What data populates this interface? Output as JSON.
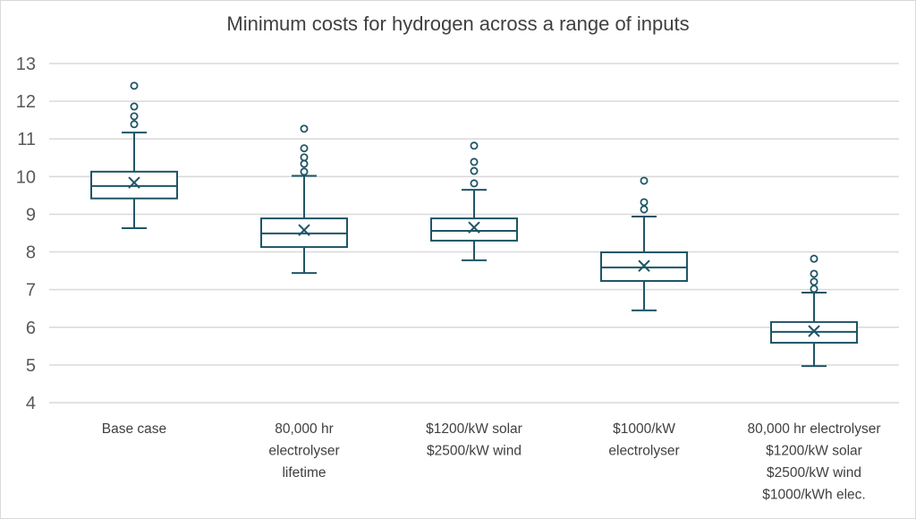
{
  "chart_data": {
    "type": "box",
    "title": "Minimum costs for hydrogen across a range of inputs",
    "xlabel": "",
    "ylabel": "",
    "ylim": [
      4,
      13
    ],
    "yticks": [
      4,
      5,
      6,
      7,
      8,
      9,
      10,
      11,
      12,
      13
    ],
    "grid": true,
    "legend": "none",
    "colors": {
      "box": "#1f5566",
      "grid": "#d9d9d9",
      "text": "#404040"
    },
    "categories": [
      [
        "Base case"
      ],
      [
        "80,000 hr",
        "electrolyser",
        "lifetime"
      ],
      [
        "$1200/kW solar",
        "$2500/kW wind"
      ],
      [
        "$1000/kW",
        "electrolyser"
      ],
      [
        "80,000 hr electrolyser",
        "$1200/kW solar",
        "$2500/kW wind",
        "$1000/kWh elec."
      ]
    ],
    "series": [
      {
        "name": "Base case",
        "min": 8.63,
        "q1": 9.42,
        "median": 9.75,
        "q3": 10.13,
        "max": 11.17,
        "mean": 9.84,
        "outliers": [
          12.41,
          11.86,
          11.6,
          11.39
        ]
      },
      {
        "name": "80,000 hr electrolyser lifetime",
        "min": 7.44,
        "q1": 8.13,
        "median": 8.49,
        "q3": 8.89,
        "max": 10.02,
        "mean": 8.58,
        "outliers": [
          11.27,
          10.75,
          10.51,
          10.34,
          10.13
        ]
      },
      {
        "name": "$1200/kW solar $2500/kW wind",
        "min": 7.78,
        "q1": 8.3,
        "median": 8.56,
        "q3": 8.89,
        "max": 9.65,
        "mean": 8.65,
        "outliers": [
          10.82,
          10.39,
          10.15,
          9.82
        ]
      },
      {
        "name": "$1000/kW electrolyser",
        "min": 6.45,
        "q1": 7.23,
        "median": 7.59,
        "q3": 7.99,
        "max": 8.94,
        "mean": 7.63,
        "outliers": [
          9.89,
          9.32,
          9.13
        ]
      },
      {
        "name": "80,000 hr electrolyser $1200/kW solar $2500/kW wind $1000/kWh elec.",
        "min": 4.97,
        "q1": 5.59,
        "median": 5.88,
        "q3": 6.14,
        "max": 6.92,
        "mean": 5.9,
        "outliers": [
          7.82,
          7.42,
          7.21,
          7.02
        ]
      }
    ]
  }
}
